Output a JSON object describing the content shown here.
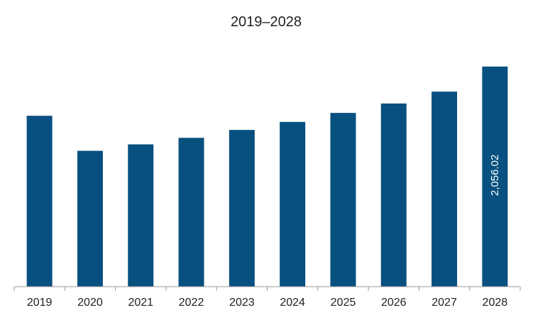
{
  "chart_data": {
    "type": "bar",
    "title": "2019–2028",
    "xlabel": "",
    "ylabel": "",
    "categories": [
      "2019",
      "2020",
      "2021",
      "2022",
      "2023",
      "2024",
      "2025",
      "2026",
      "2027",
      "2028"
    ],
    "values": [
      1596,
      1269,
      1329,
      1390,
      1464,
      1539,
      1623,
      1711,
      1822,
      2056.02
    ],
    "data_labels": [
      "",
      "",
      "",
      "",
      "",
      "",
      "",
      "",
      "",
      "2,056.02"
    ],
    "ylim": [
      0,
      2280
    ],
    "grid": false,
    "legend": "none",
    "bar_color": "#08507f"
  }
}
